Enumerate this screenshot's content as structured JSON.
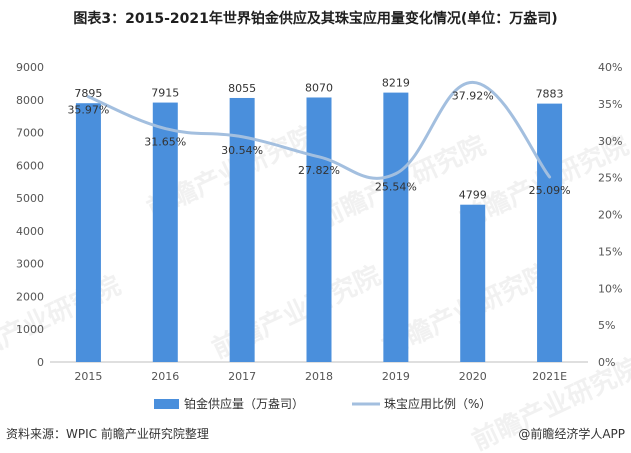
{
  "chart_data": {
    "type": "bar",
    "title": "图表3：2015-2021年世界铂金供应及其珠宝应用量变化情况(单位：万盎司)",
    "categories": [
      "2015",
      "2016",
      "2017",
      "2018",
      "2019",
      "2020",
      "2021E"
    ],
    "series": [
      {
        "name": "铂金供应量（万盎司）",
        "type": "bar",
        "axis": "left",
        "color": "#4a8fdc",
        "values": [
          7895,
          7915,
          8055,
          8070,
          8219,
          4799,
          7883
        ],
        "value_labels": [
          "7895",
          "7915",
          "8055",
          "8070",
          "8219",
          "4799",
          "7883"
        ]
      },
      {
        "name": "珠宝应用比例（%）",
        "type": "line",
        "axis": "right",
        "color": "#a3bfdf",
        "values": [
          35.97,
          31.65,
          30.54,
          27.82,
          25.54,
          37.92,
          25.09
        ],
        "value_labels": [
          "35.97%",
          "31.65%",
          "30.54%",
          "27.82%",
          "25.54%",
          "37.92%",
          "25.09%"
        ]
      }
    ],
    "y_left": {
      "range": [
        0,
        9000
      ],
      "ticks": [
        0,
        1000,
        2000,
        3000,
        4000,
        5000,
        6000,
        7000,
        8000,
        9000
      ],
      "tick_labels": [
        "0",
        "1000",
        "2000",
        "3000",
        "4000",
        "5000",
        "6000",
        "7000",
        "8000",
        "9000"
      ]
    },
    "y_right": {
      "range": [
        0,
        40
      ],
      "ticks": [
        0,
        5,
        10,
        15,
        20,
        25,
        30,
        35,
        40
      ],
      "tick_labels": [
        "0%",
        "5%",
        "10%",
        "15%",
        "20%",
        "25%",
        "30%",
        "35%",
        "40%"
      ]
    },
    "legend_position": "bottom",
    "grid": false
  },
  "watermark": "前瞻产业研究院",
  "footer": {
    "source": "资料来源：WPIC 前瞻产业研究院整理",
    "brand": "@前瞻经济学人APP"
  }
}
